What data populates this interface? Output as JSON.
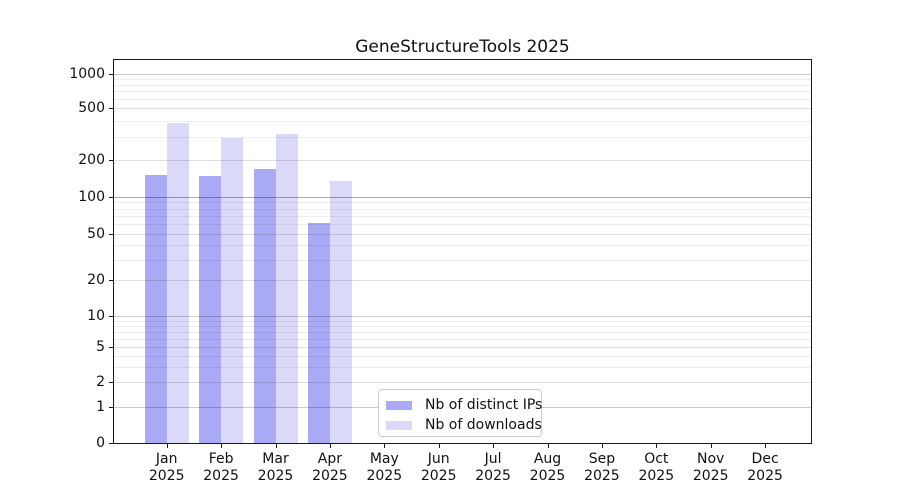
{
  "chart_data": {
    "type": "bar",
    "title": "GeneStructureTools 2025",
    "categories": [
      "Jan",
      "Feb",
      "Mar",
      "Apr",
      "May",
      "Jun",
      "Jul",
      "Aug",
      "Sep",
      "Oct",
      "Nov",
      "Dec"
    ],
    "x_tick_year": "2025",
    "series": [
      {
        "name": "Nb of distinct IPs",
        "color": "#a9a9f6",
        "values": [
          151,
          148,
          170,
          61,
          null,
          null,
          null,
          null,
          null,
          null,
          null,
          null
        ]
      },
      {
        "name": "Nb of downloads",
        "color": "#dadaf8",
        "values": [
          385,
          293,
          315,
          136,
          null,
          null,
          null,
          null,
          null,
          null,
          null,
          null
        ]
      }
    ],
    "y_axis": {
      "scale": "symlog",
      "ticks": [
        0,
        1,
        2,
        5,
        10,
        20,
        50,
        100,
        200,
        500,
        1000
      ]
    },
    "grid": {
      "major": true,
      "minor": true
    },
    "legend": {
      "position": "bottom-center-inside"
    }
  }
}
